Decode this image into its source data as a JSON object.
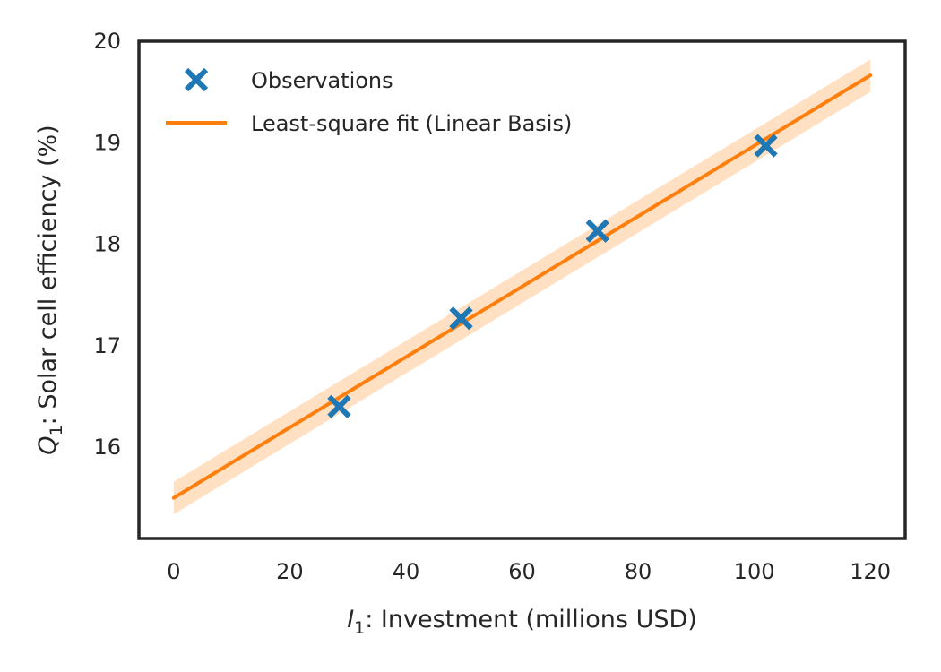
{
  "chart_data": {
    "type": "scatter",
    "title": "",
    "xlabel": {
      "var": "I",
      "sub": "1",
      "text": ": Investment (millions USD)"
    },
    "ylabel": {
      "var": "Q",
      "sub": "1",
      "text": ": Solar cell efficiency (%)"
    },
    "xlim": [
      -6,
      126
    ],
    "ylim": [
      15.1,
      20.0
    ],
    "xticks": [
      0,
      20,
      40,
      60,
      80,
      100,
      120
    ],
    "yticks": [
      16,
      17,
      18,
      19,
      20
    ],
    "grid": false,
    "legend_position": "top-left",
    "series": [
      {
        "name": "Observations",
        "kind": "scatter",
        "marker": "x",
        "color": "#1f77b4",
        "points": [
          {
            "x": 28.5,
            "y": 16.4
          },
          {
            "x": 49.5,
            "y": 17.27
          },
          {
            "x": 73.0,
            "y": 18.13
          },
          {
            "x": 102.0,
            "y": 18.97
          }
        ]
      },
      {
        "name": "Least-square fit (Linear Basis)",
        "kind": "line",
        "color": "#ff7f0e",
        "band_color": "#ffcc99",
        "x_range": [
          0,
          120
        ],
        "line": {
          "intercept": 15.5,
          "slope": 0.0347
        },
        "band": {
          "lower_intercept": 15.34,
          "upper_intercept": 15.66,
          "lower_at_120": 19.5,
          "upper_at_120": 19.82
        }
      }
    ]
  }
}
